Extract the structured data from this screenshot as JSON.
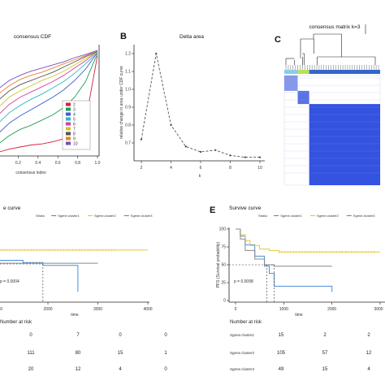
{
  "panel_letters": {
    "b": "B",
    "c": "C",
    "d": "",
    "e": "E"
  },
  "colors": {
    "cdf": [
      "#d4213a",
      "#1f9d55",
      "#3a5fcf",
      "#2bb7c4",
      "#d63fa6",
      "#d1c42a",
      "#555555",
      "#e8842a",
      "#7a4dbf"
    ],
    "heat_high": "#2244dd",
    "heat_low": "#ffffff",
    "bar_cluster1": "#87ceeb",
    "bar_cluster2": "#b8e05a",
    "bar_cluster3": "#3366cc",
    "km_blue": "#4a90d9",
    "km_yellow": "#e8c53a",
    "km_gray": "#888888"
  },
  "chart_data": [
    {
      "id": "A",
      "type": "line",
      "title": "consensus CDF",
      "xlabel": "consensus index",
      "x_ticks": [
        "0.2",
        "0.4",
        "0.6",
        "0.8",
        "1.0"
      ],
      "legend": [
        "2",
        "3",
        "4",
        "5",
        "6",
        "7",
        "8",
        "9",
        "10"
      ],
      "legend_position": "bottom-right",
      "series": [
        {
          "name": "2",
          "y": [
            0.02,
            0.05,
            0.07,
            0.09,
            0.1,
            0.12,
            0.15,
            0.2,
            0.32,
            0.95
          ]
        },
        {
          "name": "3",
          "y": [
            0.1,
            0.18,
            0.24,
            0.28,
            0.33,
            0.38,
            0.45,
            0.55,
            0.7,
            0.97
          ]
        },
        {
          "name": "4",
          "y": [
            0.2,
            0.3,
            0.37,
            0.43,
            0.49,
            0.55,
            0.62,
            0.71,
            0.82,
            0.98
          ]
        },
        {
          "name": "5",
          "y": [
            0.3,
            0.4,
            0.47,
            0.53,
            0.58,
            0.64,
            0.7,
            0.78,
            0.87,
            0.98
          ]
        },
        {
          "name": "6",
          "y": [
            0.38,
            0.48,
            0.55,
            0.6,
            0.65,
            0.7,
            0.76,
            0.83,
            0.9,
            0.99
          ]
        },
        {
          "name": "7",
          "y": [
            0.45,
            0.55,
            0.61,
            0.66,
            0.71,
            0.75,
            0.8,
            0.86,
            0.92,
            0.99
          ]
        },
        {
          "name": "8",
          "y": [
            0.52,
            0.61,
            0.67,
            0.71,
            0.75,
            0.79,
            0.84,
            0.89,
            0.94,
            0.99
          ]
        },
        {
          "name": "9",
          "y": [
            0.58,
            0.66,
            0.72,
            0.76,
            0.79,
            0.83,
            0.87,
            0.91,
            0.95,
            1.0
          ]
        },
        {
          "name": "10",
          "y": [
            0.63,
            0.71,
            0.76,
            0.8,
            0.83,
            0.86,
            0.89,
            0.93,
            0.96,
            1.0
          ]
        }
      ],
      "x": [
        0.0,
        0.11,
        0.22,
        0.33,
        0.44,
        0.55,
        0.66,
        0.77,
        0.88,
        1.0
      ]
    },
    {
      "id": "B",
      "type": "line",
      "title": "Delta area",
      "xlabel": "k",
      "ylabel": "relative change in area under CDF curve",
      "x": [
        2,
        3,
        4,
        5,
        6,
        7,
        8,
        9,
        10
      ],
      "y": [
        0.72,
        1.2,
        0.8,
        0.68,
        0.65,
        0.66,
        0.63,
        0.62,
        0.62
      ],
      "x_ticks": [
        "2",
        "4",
        "6",
        "8",
        "10"
      ],
      "y_ticks": [
        "0.7",
        "0.8",
        "0.9",
        "1.0",
        "1.1",
        "1.2"
      ],
      "ylim": [
        0.6,
        1.25
      ],
      "xlim": [
        2,
        10
      ]
    },
    {
      "id": "C",
      "type": "heatmap",
      "title": "consensus matrix k=3",
      "clusters": [
        0.14,
        0.12,
        0.74
      ]
    },
    {
      "id": "D",
      "type": "line",
      "title": "e curve",
      "legend": [
        "Strata",
        "Sgene.cluster1",
        "Sgene.cluster2",
        "Sgene.cluster3"
      ],
      "x_ticks": [
        "1000",
        "2000",
        "3000",
        "4000"
      ],
      "xlabel": "time",
      "xlim": [
        0,
        4000
      ],
      "ylim": [
        0,
        1
      ],
      "pvalue": "p = 0.0004",
      "series": [
        {
          "name": "Sgene.cluster1",
          "x": [
            0,
            100,
            200,
            400,
            600,
            800,
            1000,
            1500,
            1900,
            2600,
            2600
          ],
          "y": [
            1.0,
            0.9,
            0.8,
            0.7,
            0.62,
            0.58,
            0.55,
            0.52,
            0.48,
            0.48,
            0.12
          ]
        },
        {
          "name": "Sgene.cluster2",
          "x": [
            0,
            100,
            200,
            400,
            600,
            800,
            1000,
            4000
          ],
          "y": [
            1.0,
            0.95,
            0.88,
            0.82,
            0.76,
            0.71,
            0.69,
            0.69
          ]
        },
        {
          "name": "Sgene.cluster3",
          "x": [
            0,
            100,
            200,
            400,
            600,
            800,
            1000,
            3000
          ],
          "y": [
            1.0,
            0.88,
            0.75,
            0.62,
            0.55,
            0.52,
            0.51,
            0.51
          ]
        }
      ],
      "risk_title": "Number at risk",
      "risk_table": [
        {
          "label": "",
          "values": [
            "0",
            "7",
            "0",
            "0"
          ]
        },
        {
          "label": "",
          "values": [
            "111",
            "80",
            "15",
            "1"
          ]
        },
        {
          "label": "",
          "values": [
            "20",
            "12",
            "4",
            "0"
          ]
        }
      ]
    },
    {
      "id": "E",
      "type": "line",
      "title": "Survive curve",
      "legend": [
        "Strata",
        "Sgene.cluster1",
        "Sgene.cluster2",
        "Sgene.cluster3"
      ],
      "y_ticks": [
        "0",
        "25",
        "50",
        "75",
        "100"
      ],
      "ylabel": "PFS (Survival probability)",
      "x_ticks": [
        "0",
        "1000",
        "2000",
        "3000"
      ],
      "xlabel": "time",
      "xlim": [
        0,
        3000
      ],
      "ylim": [
        0,
        100
      ],
      "pvalue": "p = 0.0098",
      "series": [
        {
          "name": "Sgene.cluster1",
          "x": [
            0,
            100,
            200,
            400,
            600,
            700,
            800,
            800,
            2000,
            2000
          ],
          "y": [
            100,
            90,
            78,
            62,
            48,
            38,
            22,
            20,
            20,
            12
          ]
        },
        {
          "name": "Sgene.cluster2",
          "x": [
            0,
            100,
            200,
            300,
            500,
            700,
            900,
            3000
          ],
          "y": [
            100,
            92,
            84,
            77,
            72,
            70,
            68,
            68
          ]
        },
        {
          "name": "Sgene.cluster3",
          "x": [
            0,
            100,
            200,
            400,
            600,
            800,
            2000
          ],
          "y": [
            100,
            86,
            70,
            58,
            50,
            48,
            48
          ]
        }
      ],
      "risk_title": "Number at risk",
      "risk_table": [
        {
          "label": "Sgene.cluster1",
          "values": [
            "15",
            "2",
            "2",
            "0"
          ]
        },
        {
          "label": "Sgene.cluster2",
          "values": [
            "105",
            "57",
            "12",
            "0"
          ]
        },
        {
          "label": "Sgene.cluster3",
          "values": [
            "49",
            "15",
            "4",
            "0"
          ]
        }
      ]
    }
  ]
}
